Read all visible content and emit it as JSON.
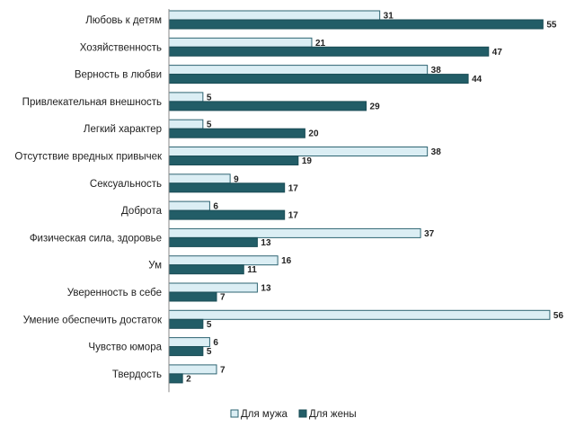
{
  "chart_data": {
    "type": "bar",
    "orientation": "horizontal",
    "categories": [
      "Любовь к детям",
      "Хозяйственность",
      "Верность в любви",
      "Привлекательная внешность",
      "Легкий характер",
      "Отсутствие вредных привычек",
      "Сексуальность",
      "Доброта",
      "Физическая сила, здоровье",
      "Ум",
      "Уверенность в себе",
      "Умение обеспечить достаток",
      "Чувство юмора",
      "Твердость"
    ],
    "series": [
      {
        "name": "Для мужа",
        "color": "#dbeef4",
        "border": "#2e6472",
        "values": [
          31,
          21,
          38,
          5,
          5,
          38,
          9,
          6,
          37,
          16,
          13,
          56,
          6,
          7
        ]
      },
      {
        "name": "Для жены",
        "color": "#225d67",
        "border": "#1a4c55",
        "values": [
          55,
          47,
          44,
          29,
          20,
          19,
          17,
          17,
          13,
          11,
          7,
          5,
          5,
          2
        ]
      }
    ],
    "xlim": [
      0,
      56
    ],
    "grid": false,
    "legend": "bottom",
    "data_labels": true
  }
}
